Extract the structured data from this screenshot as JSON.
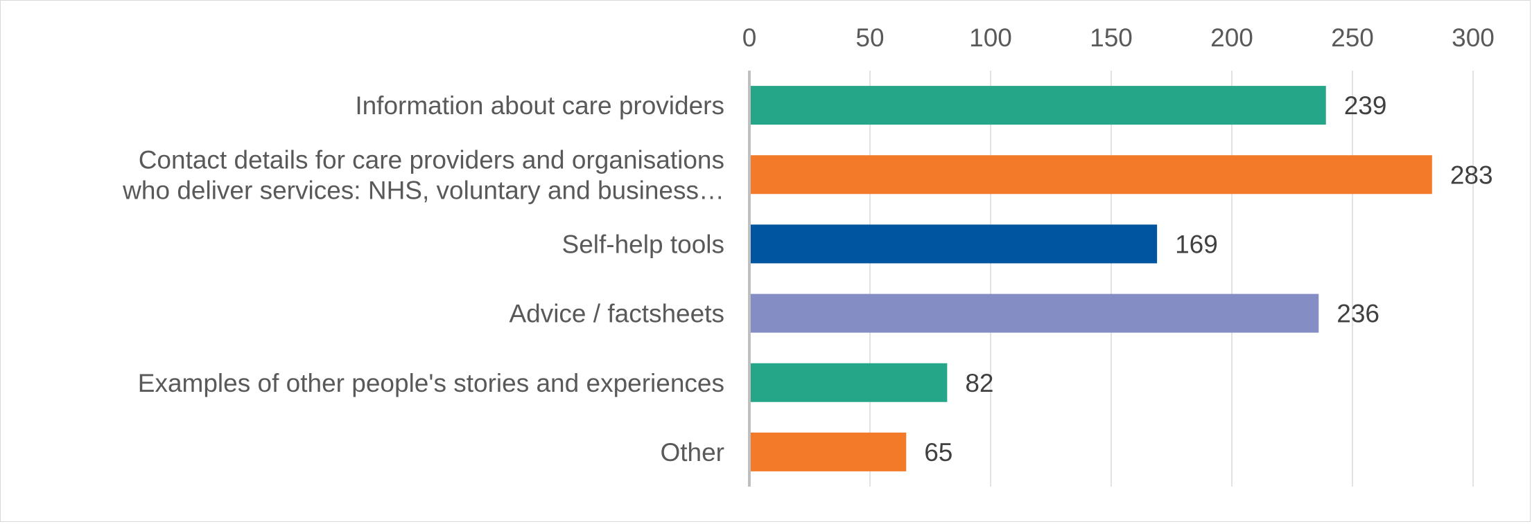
{
  "chart_data": {
    "type": "bar",
    "orientation": "horizontal",
    "x_axis_position": "top",
    "xlim": [
      0,
      300
    ],
    "x_ticks": [
      0,
      50,
      100,
      150,
      200,
      250,
      300
    ],
    "grid": true,
    "legend": "none",
    "categories": [
      [
        "Information about care providers"
      ],
      [
        "Contact details for care providers and organisations",
        "who deliver services: NHS, voluntary and business…"
      ],
      [
        "Self-help tools"
      ],
      [
        "Advice / factsheets"
      ],
      [
        "Examples of other people's stories and experiences"
      ],
      [
        "Other"
      ]
    ],
    "values": [
      239,
      283,
      169,
      236,
      82,
      65
    ],
    "bar_colors": [
      "#26a688",
      "#f37a29",
      "#0055a0",
      "#848dc4",
      "#26a688",
      "#f37a29"
    ],
    "title": "",
    "xlabel": "",
    "ylabel": ""
  }
}
